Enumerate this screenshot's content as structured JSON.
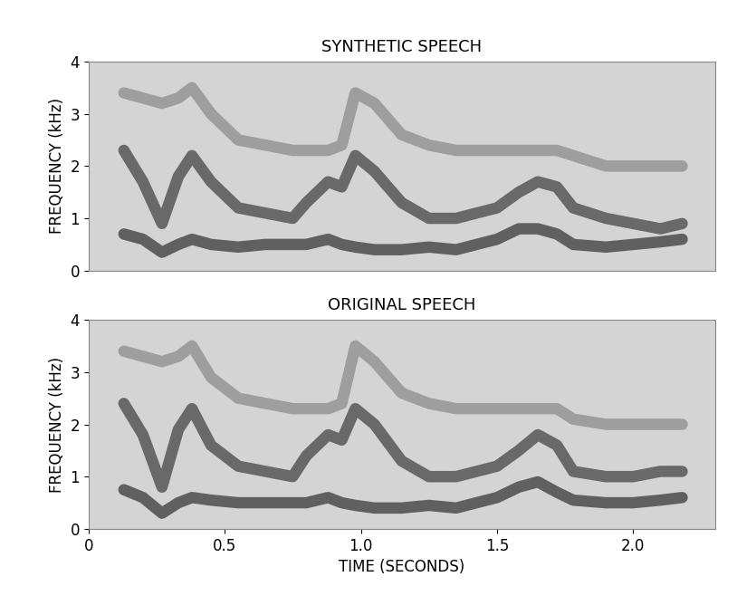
{
  "chart_data": [
    {
      "type": "line",
      "title": "SYNTHETIC SPEECH",
      "y_label": "FREQUENCY (kHz)",
      "xlim": [
        0,
        2.3
      ],
      "ylim": [
        0,
        4
      ],
      "yticks": [
        0,
        1,
        2,
        3,
        4
      ],
      "tick_labels": "y",
      "x": [
        0.13,
        0.2,
        0.27,
        0.33,
        0.38,
        0.45,
        0.55,
        0.65,
        0.75,
        0.8,
        0.88,
        0.93,
        0.98,
        1.05,
        1.15,
        1.25,
        1.35,
        1.5,
        1.58,
        1.65,
        1.72,
        1.78,
        1.9,
        2.0,
        2.1,
        2.18
      ],
      "series": [
        {
          "color": "#3a3a3a",
          "values": [
            0.7,
            0.6,
            0.35,
            0.5,
            0.6,
            0.5,
            0.45,
            0.5,
            0.5,
            0.5,
            0.6,
            0.5,
            0.45,
            0.4,
            0.4,
            0.45,
            0.4,
            0.6,
            0.8,
            0.8,
            0.7,
            0.5,
            0.45,
            0.5,
            0.55,
            0.6
          ]
        },
        {
          "color": "#454545",
          "values": [
            2.3,
            1.7,
            0.9,
            1.8,
            2.2,
            1.7,
            1.2,
            1.1,
            1.0,
            1.3,
            1.7,
            1.6,
            2.2,
            1.9,
            1.3,
            1.0,
            1.0,
            1.2,
            1.5,
            1.7,
            1.6,
            1.2,
            1.0,
            0.9,
            0.8,
            0.9
          ]
        },
        {
          "color": "#8c8c8c",
          "values": [
            3.4,
            3.3,
            3.2,
            3.3,
            3.5,
            3.0,
            2.5,
            2.4,
            2.3,
            2.3,
            2.3,
            2.4,
            3.4,
            3.2,
            2.6,
            2.4,
            2.3,
            2.3,
            2.3,
            2.3,
            2.3,
            2.2,
            2.0,
            2.0,
            2.0,
            2.0
          ]
        }
      ]
    },
    {
      "type": "line",
      "title": "ORIGINAL SPEECH",
      "y_label": "FREQUENCY (kHz)",
      "x_label": "TIME (SECONDS)",
      "xlim": [
        0,
        2.3
      ],
      "ylim": [
        0,
        4
      ],
      "yticks": [
        0,
        1,
        2,
        3,
        4
      ],
      "xticks": [
        0,
        0.5,
        {
          "value": 1,
          "label": "1.0"
        },
        1.5,
        {
          "value": 2,
          "label": "2.0"
        }
      ],
      "x": [
        0.13,
        0.2,
        0.27,
        0.33,
        0.38,
        0.45,
        0.55,
        0.65,
        0.75,
        0.8,
        0.88,
        0.93,
        0.98,
        1.05,
        1.15,
        1.25,
        1.35,
        1.5,
        1.58,
        1.65,
        1.72,
        1.78,
        1.9,
        2.0,
        2.1,
        2.18
      ],
      "series": [
        {
          "color": "#3a3a3a",
          "values": [
            0.75,
            0.6,
            0.3,
            0.5,
            0.6,
            0.55,
            0.5,
            0.5,
            0.5,
            0.5,
            0.6,
            0.5,
            0.45,
            0.4,
            0.4,
            0.45,
            0.4,
            0.6,
            0.8,
            0.9,
            0.7,
            0.55,
            0.5,
            0.5,
            0.55,
            0.6
          ]
        },
        {
          "color": "#454545",
          "values": [
            2.4,
            1.8,
            0.8,
            1.9,
            2.3,
            1.6,
            1.2,
            1.1,
            1.0,
            1.4,
            1.8,
            1.7,
            2.3,
            2.0,
            1.3,
            1.0,
            1.0,
            1.2,
            1.5,
            1.8,
            1.6,
            1.1,
            1.0,
            1.0,
            1.1,
            1.1
          ]
        },
        {
          "color": "#8c8c8c",
          "values": [
            3.4,
            3.3,
            3.2,
            3.3,
            3.5,
            2.9,
            2.5,
            2.4,
            2.3,
            2.3,
            2.3,
            2.4,
            3.5,
            3.2,
            2.6,
            2.4,
            2.3,
            2.3,
            2.3,
            2.3,
            2.3,
            2.1,
            2.0,
            2.0,
            2.0,
            2.0
          ]
        }
      ]
    }
  ]
}
